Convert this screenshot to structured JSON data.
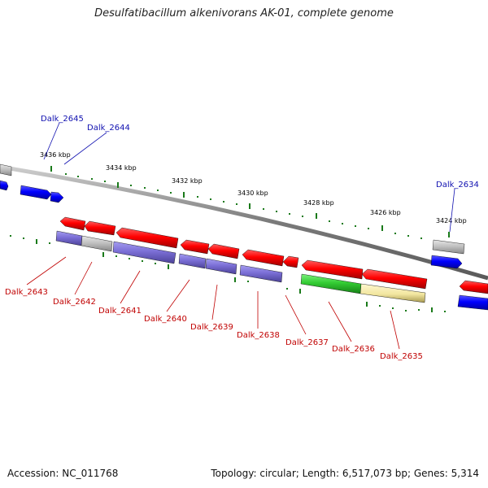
{
  "title": "Desulfatibacillum alkenivorans AK-01, complete genome",
  "footer": {
    "accession": "Accession: NC_011768",
    "summary": "Topology: circular; Length: 6,517,073 bp; Genes: 5,314"
  },
  "ticks": [
    {
      "label": "3436 kbp",
      "kbp": 3436
    },
    {
      "label": "3434 kbp",
      "kbp": 3434
    },
    {
      "label": "3432 kbp",
      "kbp": 3432
    },
    {
      "label": "3430 kbp",
      "kbp": 3430
    },
    {
      "label": "3428 kbp",
      "kbp": 3428
    },
    {
      "label": "3426 kbp",
      "kbp": 3426
    },
    {
      "label": "3424 kbp",
      "kbp": 3424
    }
  ],
  "top_labels": [
    "Dalk_2645",
    "Dalk_2644",
    "Dalk_2634"
  ],
  "bottom_labels": [
    "Dalk_2643",
    "Dalk_2642",
    "Dalk_2641",
    "Dalk_2640",
    "Dalk_2639",
    "Dalk_2638",
    "Dalk_2637",
    "Dalk_2636",
    "Dalk_2635"
  ],
  "colors": {
    "forward_cds": "#1a1aff",
    "reverse_cds": "#ff1010",
    "blue_feature": "#7b6fd6",
    "gray_feature": "#bdbdbd",
    "green_feature": "#33cc33",
    "yellow_feature": "#f2e6a0",
    "backbone": "#8a8a8a",
    "tick_mark": "#1a7a1a"
  }
}
